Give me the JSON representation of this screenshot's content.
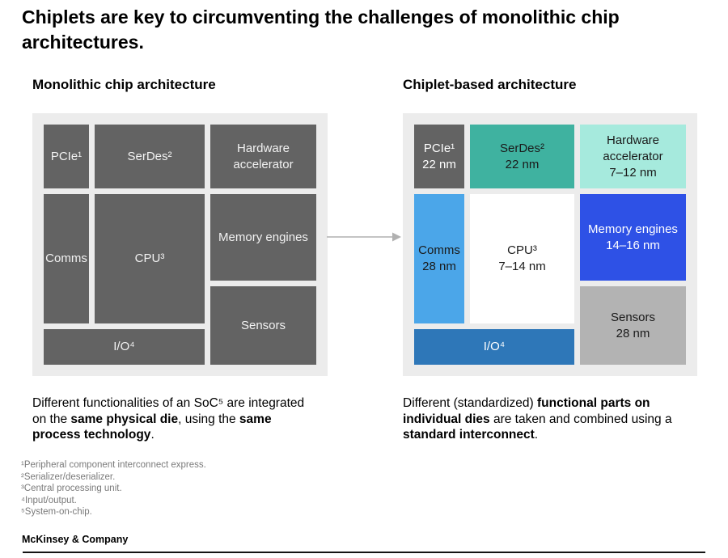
{
  "page": {
    "title": "Chiplets are key to circumventing the challenges of monolithic chip architectures.",
    "brand": "McKinsey & Company"
  },
  "colors": {
    "container_bg": "#ececec",
    "arrow": "#b1b1b1",
    "mono_block_bg": "#636363",
    "mono_block_text": "#f2f2f2"
  },
  "monolithic": {
    "heading": "Monolithic chip architecture",
    "blocks": {
      "pcie": {
        "label": "PCIe¹"
      },
      "serdes": {
        "label": "SerDes²"
      },
      "hw_accelerator": {
        "label": "Hardware accelerator"
      },
      "comms": {
        "label": "Comms"
      },
      "cpu": {
        "label": "CPU³"
      },
      "memory": {
        "label": "Memory engines"
      },
      "sensors": {
        "label": "Sensors"
      },
      "io": {
        "label": "I/O⁴"
      }
    },
    "description": [
      {
        "text": "Different functionalities of an SoC⁵ are integrated on the ",
        "bold": false
      },
      {
        "text": "same physical die",
        "bold": true
      },
      {
        "text": ", using the ",
        "bold": false
      },
      {
        "text": "same process technology",
        "bold": true
      },
      {
        "text": ".",
        "bold": false
      }
    ]
  },
  "chiplet": {
    "heading": "Chiplet-based architecture",
    "blocks": {
      "pcie": {
        "label": "PCIe¹",
        "node": "22 nm",
        "bg": "#636363",
        "fg": "#ffffff"
      },
      "serdes": {
        "label": "SerDes²",
        "node": "22 nm",
        "bg": "#3fb2a0",
        "fg": "#1a1a1a"
      },
      "hw_accelerator": {
        "label": "Hardware accelerator",
        "node": "7–12 nm",
        "bg": "#a6eadd",
        "fg": "#1a1a1a"
      },
      "comms": {
        "label": "Comms",
        "node": "28 nm",
        "bg": "#4ba6e9",
        "fg": "#1a1a1a"
      },
      "cpu": {
        "label": "CPU³",
        "node": "7–14 nm",
        "bg": "#ffffff",
        "fg": "#1a1a1a"
      },
      "memory": {
        "label": "Memory engines",
        "node": "14–16 nm",
        "bg": "#2e51e6",
        "fg": "#ffffff"
      },
      "sensors": {
        "label": "Sensors",
        "node": "28 nm",
        "bg": "#b3b3b3",
        "fg": "#1a1a1a"
      },
      "io": {
        "label": "I/O⁴",
        "node": "",
        "bg": "#2e77b8",
        "fg": "#ffffff"
      }
    },
    "description": [
      {
        "text": "Different (standardized) ",
        "bold": false
      },
      {
        "text": "functional parts on individual dies",
        "bold": true
      },
      {
        "text": " are taken and combined using a ",
        "bold": false
      },
      {
        "text": "standard interconnect",
        "bold": true
      },
      {
        "text": ".",
        "bold": false
      }
    ]
  },
  "footnotes": [
    "¹Peripheral component interconnect express.",
    "²Serializer/deserializer.",
    "³Central processing unit.",
    "⁴Input/output.",
    "⁵System-on-chip."
  ]
}
